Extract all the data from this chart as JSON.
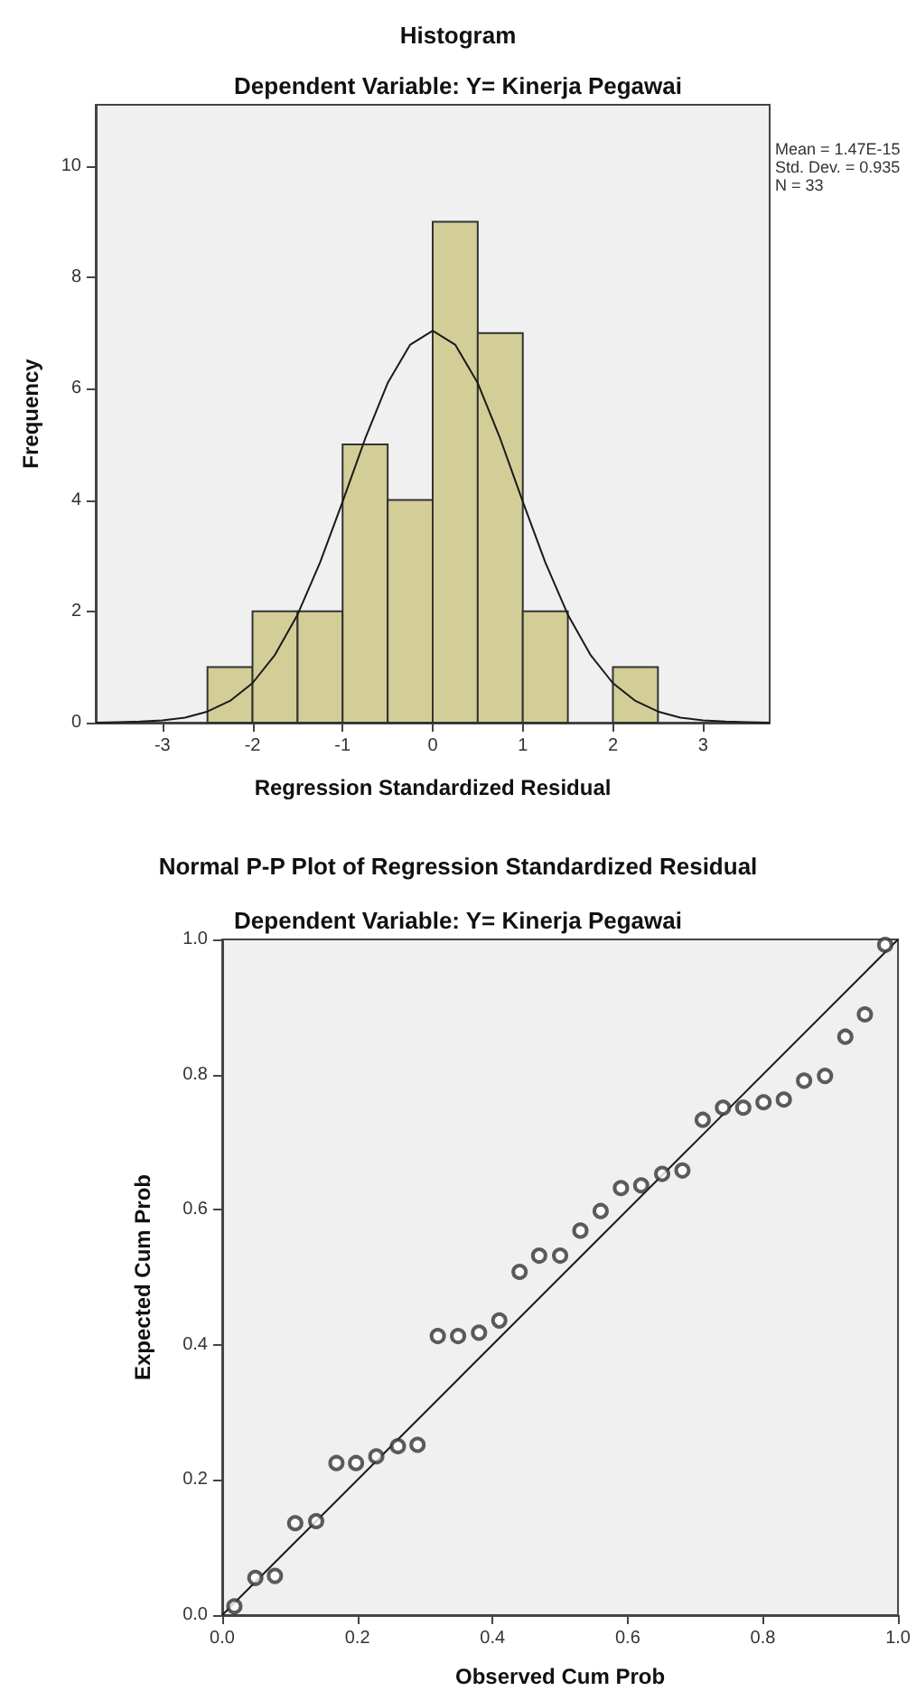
{
  "chart_data": [
    {
      "type": "histogram",
      "title": "Histogram",
      "subtitle": "Dependent Variable: Y= Kinerja Pegawai",
      "xlabel": "Regression Standardized Residual",
      "ylabel": "Frequency",
      "bins": [
        -2.5,
        -2,
        -1.5,
        -1,
        -0.5,
        0,
        0.5,
        1,
        1.5,
        2,
        2.5
      ],
      "series": [
        {
          "color": "#d3ce97",
          "values": [
            1,
            2,
            2,
            5,
            4,
            9,
            7,
            2,
            0,
            1
          ]
        },
        {
          "type": "line",
          "color": "#1a1a1a",
          "x": [
            -3.74,
            -3.5,
            -3.25,
            -3,
            -2.75,
            -2.5,
            -2.25,
            -2,
            -1.75,
            -1.5,
            -1.25,
            -1,
            -0.75,
            -0.5,
            -0.25,
            0,
            0.25,
            0.5,
            0.75,
            1,
            1.25,
            1.5,
            1.75,
            2,
            2.25,
            2.5,
            2.75,
            3,
            3.25,
            3.5,
            3.74
          ],
          "values": [
            0,
            0.01,
            0.02,
            0.04,
            0.09,
            0.2,
            0.39,
            0.71,
            1.22,
            1.94,
            2.88,
            3.97,
            5.1,
            6.1,
            6.79,
            7.04,
            6.79,
            6.1,
            5.1,
            3.97,
            2.88,
            1.94,
            1.22,
            0.71,
            0.39,
            0.2,
            0.09,
            0.04,
            0.02,
            0.01,
            0
          ]
        }
      ],
      "xlim": [
        -3.74,
        3.74
      ],
      "xticks": [
        -3,
        -2,
        -1,
        0,
        1,
        2,
        3
      ],
      "ylim": [
        0,
        11.1
      ],
      "yticks": [
        0,
        2,
        4,
        6,
        8,
        10
      ],
      "annotations": [
        "Mean = 1.47E-15",
        "Std. Dev. = 0.935",
        "N = 33"
      ]
    },
    {
      "type": "scatter",
      "title": "Normal P-P Plot of Regression Standardized Residual",
      "subtitle": "Dependent Variable: Y= Kinerja Pegawai",
      "xlabel": "Observed Cum Prob",
      "ylabel": "Expected Cum Prob",
      "series": [
        {
          "marker": "circle",
          "color": "#333333",
          "x": [
            0.018,
            0.049,
            0.078,
            0.108,
            0.139,
            0.169,
            0.198,
            0.228,
            0.26,
            0.289,
            0.319,
            0.349,
            0.38,
            0.41,
            0.44,
            0.469,
            0.5,
            0.53,
            0.56,
            0.59,
            0.62,
            0.651,
            0.681,
            0.711,
            0.741,
            0.771,
            0.801,
            0.831,
            0.861,
            0.892,
            0.922,
            0.951,
            0.981
          ],
          "values": [
            0.013,
            0.055,
            0.058,
            0.136,
            0.139,
            0.225,
            0.225,
            0.235,
            0.25,
            0.252,
            0.413,
            0.413,
            0.418,
            0.436,
            0.508,
            0.532,
            0.532,
            0.569,
            0.598,
            0.632,
            0.636,
            0.653,
            0.658,
            0.733,
            0.751,
            0.751,
            0.759,
            0.763,
            0.791,
            0.798,
            0.856,
            0.889,
            0.992
          ]
        },
        {
          "type": "line",
          "color": "#1a1a1a",
          "x": [
            0,
            1
          ],
          "values": [
            0,
            1
          ]
        }
      ],
      "xlim": [
        0,
        1
      ],
      "ylim": [
        0,
        1
      ],
      "xticks": [
        {
          "value": 0,
          "label": "0.0"
        },
        {
          "value": 0.2,
          "label": "0.2"
        },
        {
          "value": 0.4,
          "label": "0.4"
        },
        {
          "value": 0.6,
          "label": "0.6"
        },
        {
          "value": 0.8,
          "label": "0.8"
        },
        {
          "value": 1,
          "label": "1.0"
        }
      ],
      "yticks": [
        {
          "value": 0,
          "label": "0.0"
        },
        {
          "value": 0.2,
          "label": "0.2"
        },
        {
          "value": 0.4,
          "label": "0.4"
        },
        {
          "value": 0.6,
          "label": "0.6"
        },
        {
          "value": 0.8,
          "label": "0.8"
        },
        {
          "value": 1,
          "label": "1.0"
        }
      ]
    }
  ]
}
